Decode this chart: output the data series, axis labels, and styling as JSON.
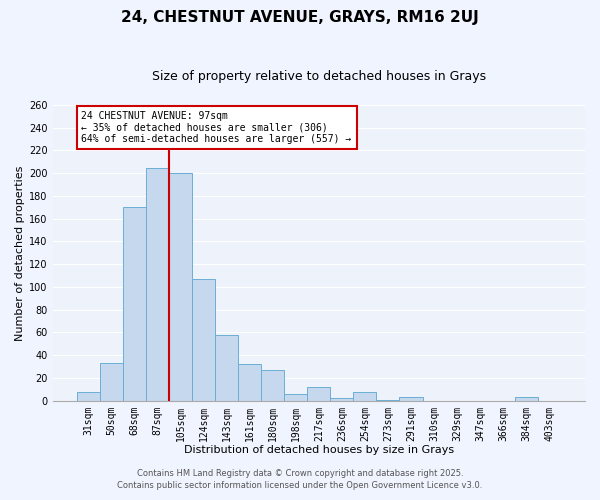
{
  "title": "24, CHESTNUT AVENUE, GRAYS, RM16 2UJ",
  "subtitle": "Size of property relative to detached houses in Grays",
  "xlabel": "Distribution of detached houses by size in Grays",
  "ylabel": "Number of detached properties",
  "categories": [
    "31sqm",
    "50sqm",
    "68sqm",
    "87sqm",
    "105sqm",
    "124sqm",
    "143sqm",
    "161sqm",
    "180sqm",
    "198sqm",
    "217sqm",
    "236sqm",
    "254sqm",
    "273sqm",
    "291sqm",
    "310sqm",
    "329sqm",
    "347sqm",
    "366sqm",
    "384sqm",
    "403sqm"
  ],
  "values": [
    8,
    33,
    170,
    205,
    200,
    107,
    58,
    32,
    27,
    6,
    12,
    2,
    8,
    1,
    3,
    0,
    0,
    0,
    0,
    3,
    0
  ],
  "bar_color": "#c5d8ed",
  "bar_edge_color": "#6baed6",
  "bar_width": 1.0,
  "vline_x": 3.5,
  "vline_color": "#cc0000",
  "annotation_text": "24 CHESTNUT AVENUE: 97sqm\n← 35% of detached houses are smaller (306)\n64% of semi-detached houses are larger (557) →",
  "annotation_box_color": "#ffffff",
  "annotation_box_edge_color": "#cc0000",
  "ylim": [
    0,
    260
  ],
  "yticks": [
    0,
    20,
    40,
    60,
    80,
    100,
    120,
    140,
    160,
    180,
    200,
    220,
    240,
    260
  ],
  "footer1": "Contains HM Land Registry data © Crown copyright and database right 2025.",
  "footer2": "Contains public sector information licensed under the Open Government Licence v3.0.",
  "background_color": "#f0f4ff",
  "plot_bg_color": "#eef2fa",
  "grid_color": "#ffffff",
  "title_fontsize": 11,
  "subtitle_fontsize": 9,
  "axis_label_fontsize": 8,
  "tick_fontsize": 7,
  "annotation_fontsize": 7,
  "footer_fontsize": 6
}
